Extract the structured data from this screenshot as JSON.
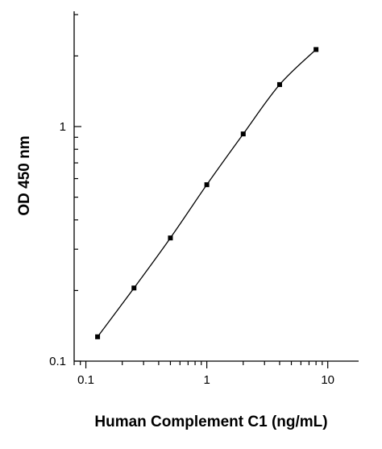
{
  "chart_data": {
    "type": "line",
    "title": "",
    "xlabel": "Human Complement C1 (ng/mL)",
    "ylabel": "OD 450 nm",
    "x_scale": "log",
    "y_scale": "log",
    "xlim": [
      0.08,
      18
    ],
    "ylim": [
      0.1,
      3.1
    ],
    "x_major_ticks": [
      0.1,
      1,
      10
    ],
    "x_tick_labels": [
      "0.1",
      "1",
      "10"
    ],
    "y_major_ticks": [
      0.1,
      1
    ],
    "y_tick_labels": [
      "0.1",
      "1"
    ],
    "grid": false,
    "series": [
      {
        "x": [
          0.125,
          0.25,
          0.5,
          1,
          2,
          4,
          8
        ],
        "y": [
          0.127,
          0.205,
          0.335,
          0.565,
          0.93,
          1.51,
          2.13
        ]
      }
    ]
  }
}
